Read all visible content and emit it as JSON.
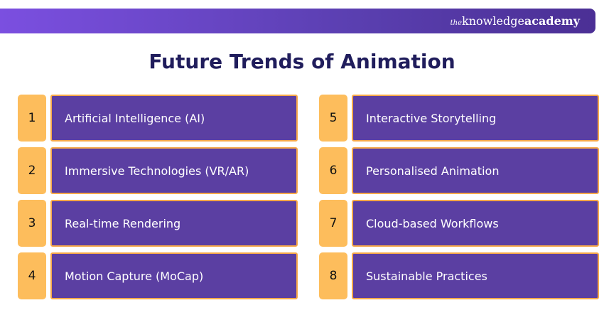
{
  "header": {
    "brand": {
      "prefix": "the",
      "word1": "knowledge",
      "word2": "academy"
    }
  },
  "title": "Future Trends of Animation",
  "items": [
    {
      "number": 1,
      "label": "Artificial Intelligence (AI)"
    },
    {
      "number": 2,
      "label": "Immersive Technologies (VR/AR)"
    },
    {
      "number": 3,
      "label": "Real-time Rendering"
    },
    {
      "number": 4,
      "label": "Motion Capture (MoCap)"
    },
    {
      "number": 5,
      "label": "Interactive Storytelling"
    },
    {
      "number": 6,
      "label": "Personalised Animation"
    },
    {
      "number": 7,
      "label": "Cloud-based Workflows"
    },
    {
      "number": 8,
      "label": "Sustainable Practices"
    }
  ]
}
